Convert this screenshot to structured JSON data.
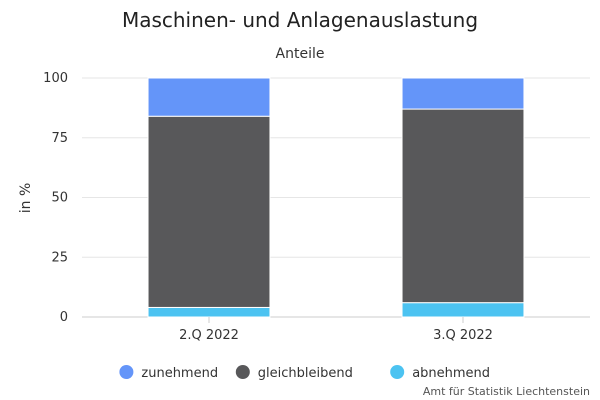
{
  "chart_data": {
    "type": "bar",
    "stacked": true,
    "title": "Maschinen- und Anlagenauslastung",
    "subtitle": "Anteile",
    "ylabel": "in %",
    "xlabel": "",
    "ylim": [
      0,
      100
    ],
    "yticks": [
      0,
      25,
      50,
      75,
      100
    ],
    "categories": [
      "2.Q 2022",
      "3.Q 2022"
    ],
    "series": [
      {
        "name": "abnehmend",
        "color": "#4cc3f1",
        "values": [
          4,
          6
        ]
      },
      {
        "name": "gleichbleibend",
        "color": "#58585a",
        "values": [
          80,
          81
        ]
      },
      {
        "name": "zunehmend",
        "color": "#6495f9",
        "values": [
          16,
          13
        ]
      }
    ],
    "legend": {
      "placement": "bottom-center",
      "order": [
        "zunehmend",
        "gleichbleibend",
        "abnehmend"
      ]
    },
    "grid": true,
    "credit": "Amt für Statistik Liechtenstein"
  }
}
